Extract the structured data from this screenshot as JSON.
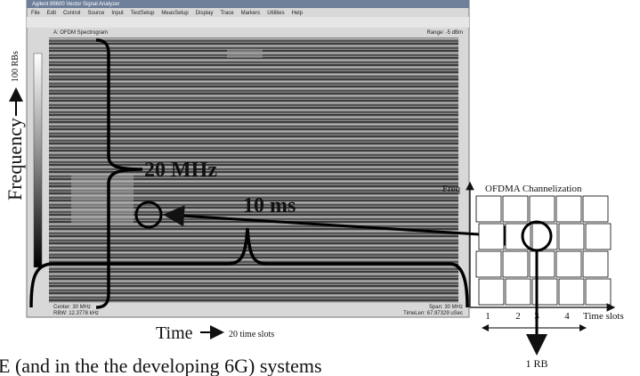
{
  "window": {
    "title": "Agilent 89600 Vector Signal Analyzer",
    "menu": [
      "File",
      "Edit",
      "Control",
      "Source",
      "Input",
      "TestSetup",
      "MeasSetup",
      "Display",
      "Trace",
      "Markers",
      "Utilities",
      "Help"
    ],
    "trace_title": "A: OFDM Spectrogram",
    "range": "Range: -5 dBm",
    "footer_left": [
      "Center: 30 MHz",
      "RBW: 12.3778 kHz"
    ],
    "footer_right": [
      "Span: 30 MHz",
      "TimeLen: 67.97329 uSec"
    ]
  },
  "annotations": {
    "frequency": "Frequency",
    "rbs": "100 RBs",
    "bandwidth": "20 MHz",
    "duration": "10 ms",
    "time": "Time",
    "time_slots_note": "20 time slots",
    "caption": "E (and in the the developing 6G) systems"
  },
  "channelization": {
    "y_label": "Freq",
    "title": "OFDMA Channelization",
    "x_label": "Time slots",
    "ticks": [
      "1",
      "2",
      "3",
      "4"
    ],
    "rb": "1 RB"
  }
}
